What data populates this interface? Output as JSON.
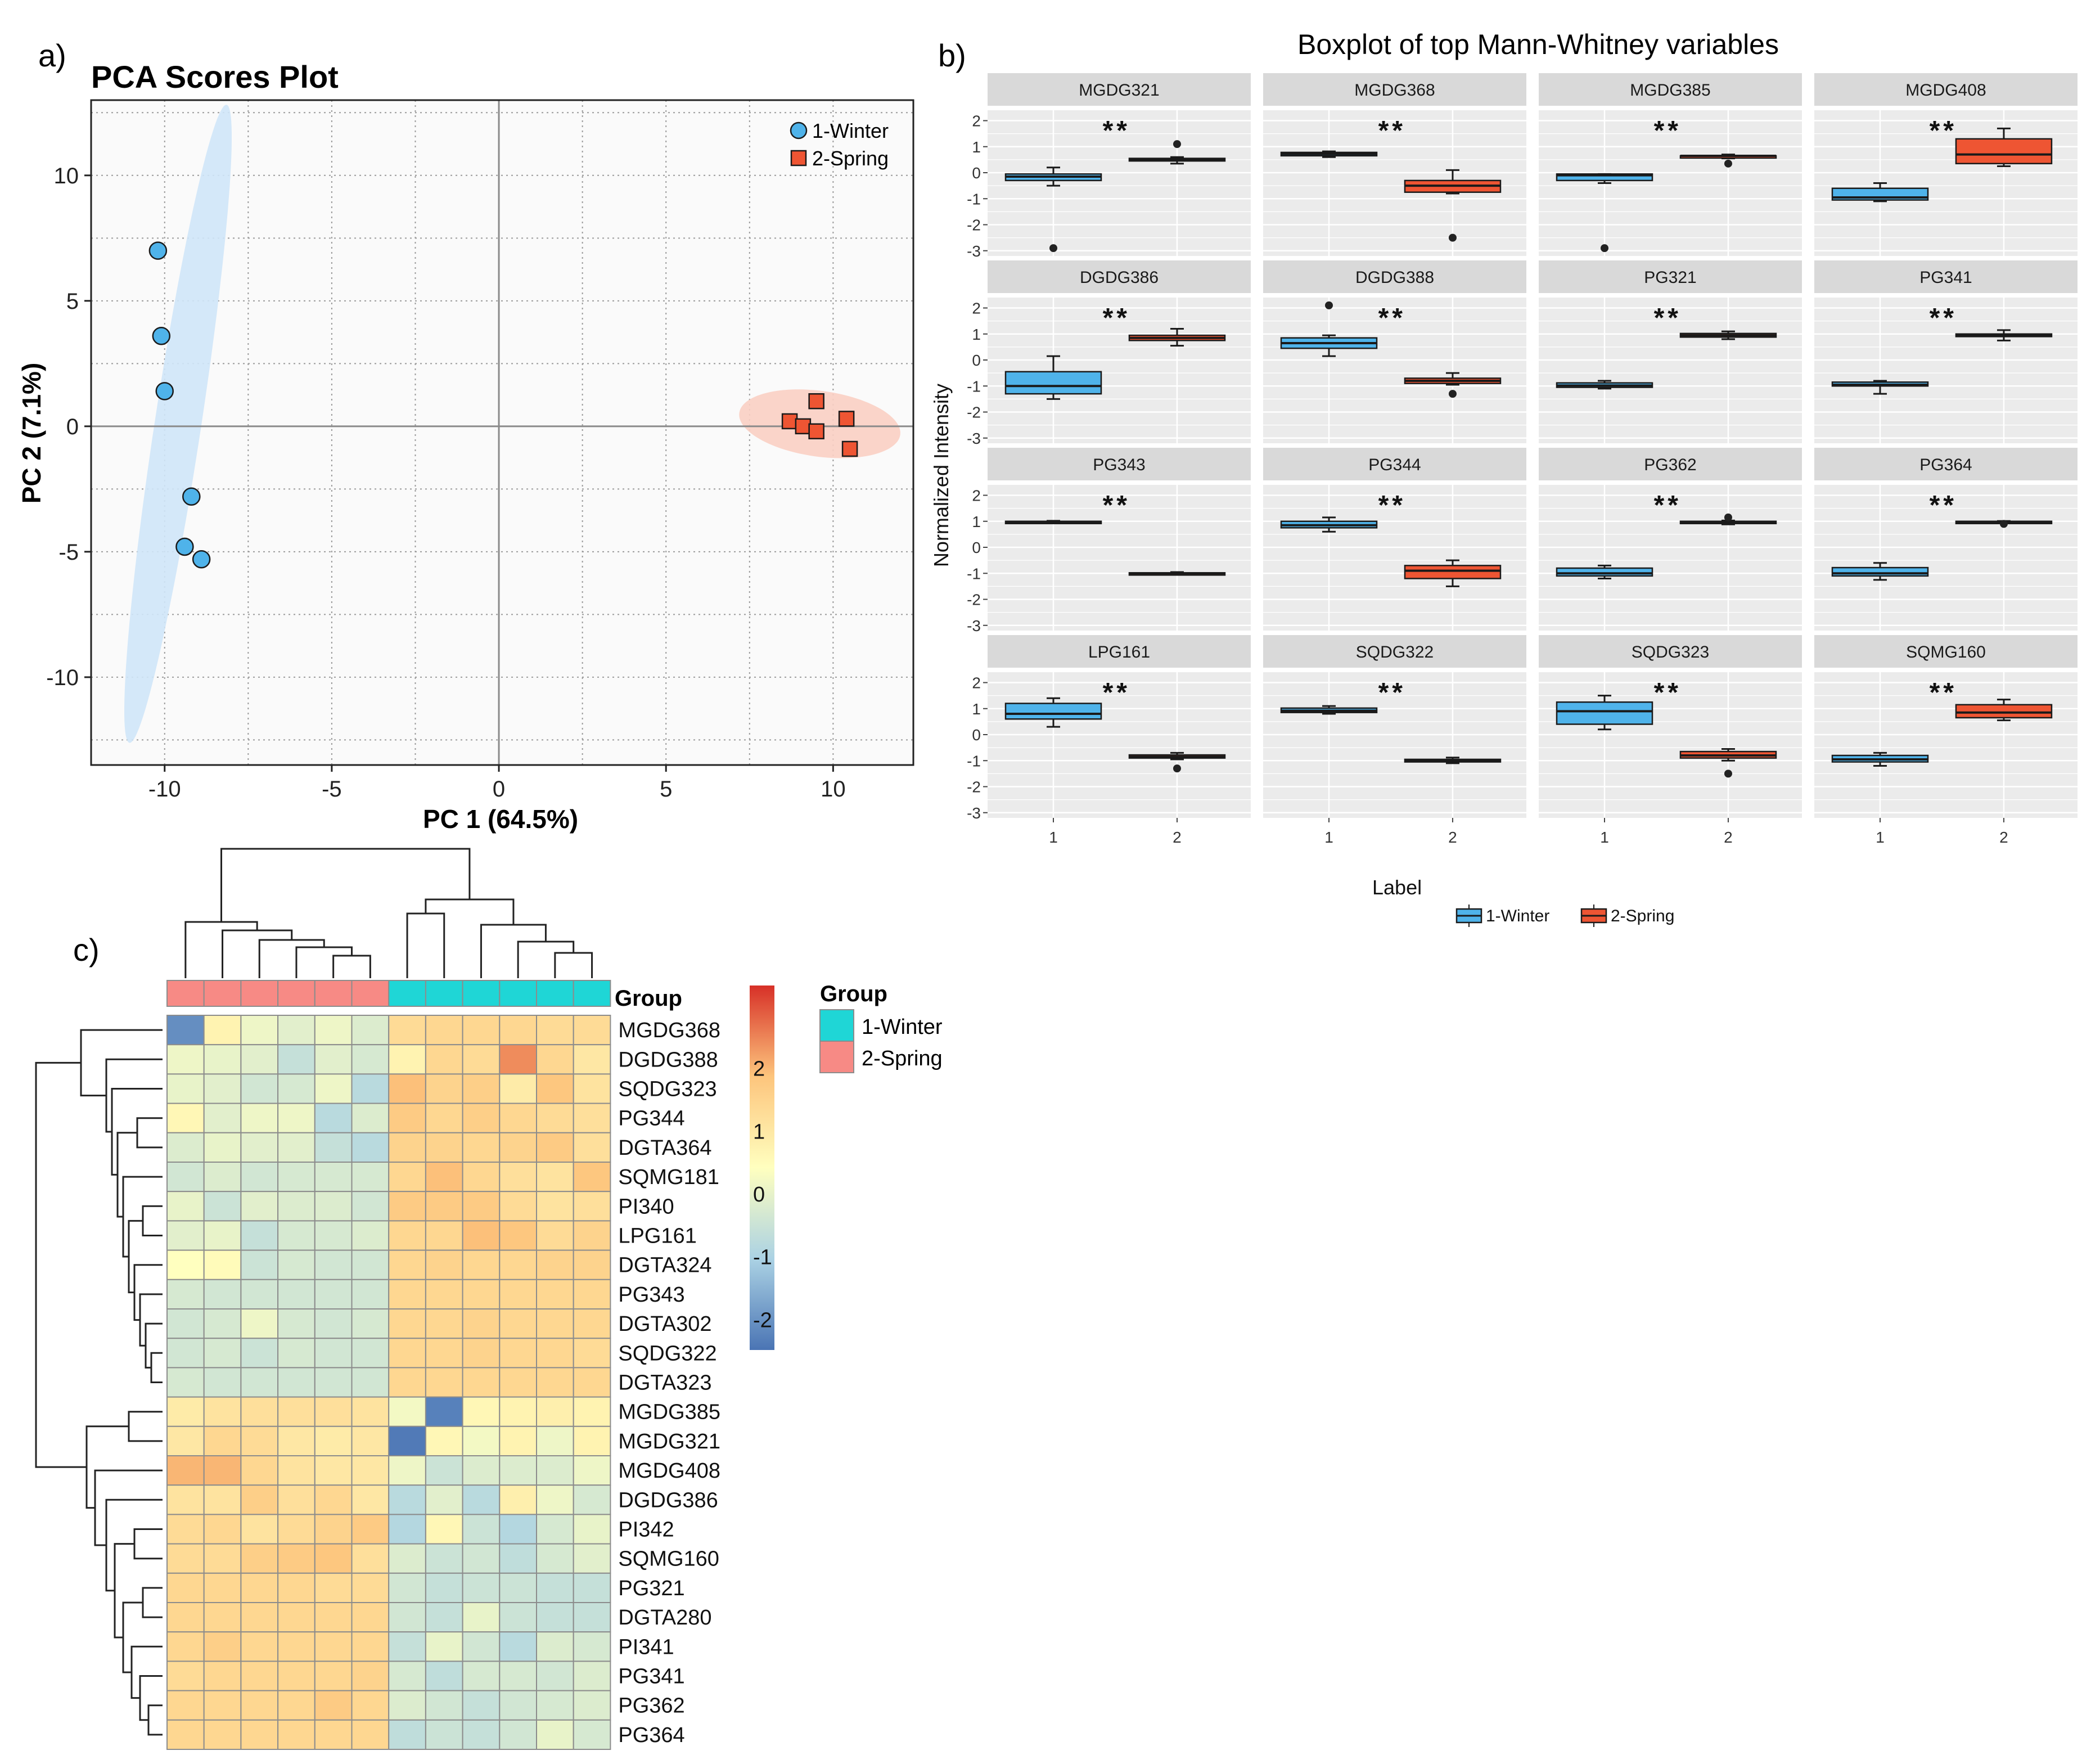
{
  "panels": {
    "a": "a)",
    "b": "b)",
    "c": "c)"
  },
  "colors": {
    "winter": "#4FB3EA",
    "spring": "#EE5533",
    "winter_ellipse": "#CFE6F8",
    "spring_ellipse": "#F9CFC3",
    "strip_bg": "#D9D9D9",
    "panel_bg": "#EBEBEB",
    "group_winter": "#1FD6D6",
    "group_spring": "#F78A85",
    "heat_low": "#4A74B4",
    "heat_mid": "#FFFFBF",
    "heat_high": "#D73027"
  },
  "chart_data": [
    {
      "id": "pca",
      "type": "scatter",
      "title": "PCA Scores Plot",
      "xlabel": "PC 1 (64.5%)",
      "ylabel": "PC 2 (7.1%)",
      "xlim": [
        -12.2,
        12.4
      ],
      "ylim": [
        -13.5,
        13.0
      ],
      "xticks": [
        -10,
        -5,
        0,
        5,
        10
      ],
      "yticks": [
        -10,
        -5,
        0,
        5,
        10
      ],
      "xtick_labels": [
        "-10",
        "-5",
        "0",
        "5",
        "10"
      ],
      "ytick_labels": [
        "-10",
        "-5",
        "0",
        "5",
        "10"
      ],
      "legend": [
        "1-Winter",
        "2-Spring"
      ],
      "series": [
        {
          "name": "1-Winter",
          "marker": "circle",
          "points": [
            [
              -10.2,
              7.0
            ],
            [
              -10.1,
              3.6
            ],
            [
              -10.0,
              1.4
            ],
            [
              -9.2,
              -2.8
            ],
            [
              -9.4,
              -4.8
            ],
            [
              -8.9,
              -5.3
            ]
          ]
        },
        {
          "name": "2-Spring",
          "marker": "square",
          "points": [
            [
              9.5,
              1.0
            ],
            [
              8.7,
              0.2
            ],
            [
              9.1,
              0.0
            ],
            [
              9.5,
              -0.2
            ],
            [
              10.4,
              0.3
            ],
            [
              10.5,
              -0.9
            ]
          ]
        }
      ],
      "ellipses": [
        {
          "group": "1-Winter",
          "center": [
            -9.6,
            0.1
          ],
          "semi_major": 12.8,
          "semi_minor": 0.7,
          "angle_deg": 83.5
        },
        {
          "group": "2-Spring",
          "center": [
            9.6,
            0.1
          ],
          "semi_major": 2.45,
          "semi_minor": 1.3,
          "angle_deg": -12
        }
      ]
    },
    {
      "id": "boxplots",
      "type": "boxplot",
      "title": "Boxplot of top Mann-Whitney variables",
      "ylabel": "Normalized Intensity",
      "ylim": [
        -3.2,
        2.4
      ],
      "yticks": [
        2,
        1,
        0,
        -1,
        -2,
        -3
      ],
      "ytick_labels": [
        "2",
        "1",
        "0",
        "-1",
        "-2",
        "-3"
      ],
      "xtick_labels": [
        "1",
        "2"
      ],
      "significance": "**",
      "legend_title": "Label",
      "legend": [
        "1-Winter",
        "2-Spring"
      ],
      "facets": [
        {
          "name": "MGDG321",
          "g1": [
            -0.3,
            -0.15,
            -0.05,
            0.2,
            -0.5
          ],
          "g1_out": [
            -2.9
          ],
          "g2": [
            0.45,
            0.5,
            0.55,
            0.6,
            0.35
          ],
          "g2_out": [
            1.1
          ]
        },
        {
          "name": "MGDG368",
          "g1": [
            0.65,
            0.72,
            0.78,
            0.82,
            0.6
          ],
          "g1_out": [],
          "g2": [
            -0.75,
            -0.5,
            -0.3,
            0.1,
            -0.8
          ],
          "g2_out": [
            -2.5
          ]
        },
        {
          "name": "MGDG385",
          "g1": [
            -0.3,
            -0.1,
            -0.05,
            -0.05,
            -0.4
          ],
          "g1_out": [
            -2.9
          ],
          "g2": [
            0.6,
            0.65,
            0.65,
            0.7,
            0.55
          ],
          "g2_out": [
            0.35
          ]
        },
        {
          "name": "MGDG408",
          "g1": [
            -1.05,
            -0.95,
            -0.6,
            -0.4,
            -1.1
          ],
          "g1_out": [],
          "g2": [
            0.35,
            0.7,
            1.3,
            1.7,
            0.25
          ],
          "g2_out": []
        },
        {
          "name": "DGDG386",
          "g1": [
            -1.3,
            -1.0,
            -0.45,
            0.15,
            -1.5
          ],
          "g1_out": [],
          "g2": [
            0.75,
            0.85,
            0.95,
            1.2,
            0.55
          ],
          "g2_out": []
        },
        {
          "name": "DGDG388",
          "g1": [
            0.45,
            0.65,
            0.85,
            0.95,
            0.15
          ],
          "g1_out": [
            2.1
          ],
          "g2": [
            -0.9,
            -0.8,
            -0.7,
            -0.5,
            -0.95
          ],
          "g2_out": [
            -1.3
          ]
        },
        {
          "name": "PG321",
          "g1": [
            -1.05,
            -0.98,
            -0.88,
            -0.8,
            -1.1
          ],
          "g1_out": [],
          "g2": [
            0.88,
            0.95,
            1.02,
            1.1,
            0.8
          ],
          "g2_out": []
        },
        {
          "name": "PG341",
          "g1": [
            -1.0,
            -0.95,
            -0.85,
            -0.8,
            -1.3
          ],
          "g1_out": [],
          "g2": [
            0.9,
            0.95,
            1.0,
            1.15,
            0.75
          ],
          "g2_out": []
        },
        {
          "name": "PG343",
          "g1": [
            0.95,
            0.98,
            1.0,
            1.02,
            0.93
          ],
          "g1_out": [],
          "g2": [
            -1.03,
            -1.0,
            -0.98,
            -0.95,
            -1.06
          ],
          "g2_out": []
        },
        {
          "name": "PG344",
          "g1": [
            0.75,
            0.85,
            1.0,
            1.15,
            0.6
          ],
          "g1_out": [],
          "g2": [
            -1.2,
            -0.9,
            -0.7,
            -0.5,
            -1.5
          ],
          "g2_out": []
        },
        {
          "name": "PG362",
          "g1": [
            -1.1,
            -1.0,
            -0.8,
            -0.7,
            -1.2
          ],
          "g1_out": [],
          "g2": [
            0.92,
            0.95,
            1.0,
            1.03,
            0.88
          ],
          "g2_out": [
            1.15
          ]
        },
        {
          "name": "PG364",
          "g1": [
            -1.1,
            -1.0,
            -0.78,
            -0.6,
            -1.25
          ],
          "g1_out": [],
          "g2": [
            0.97,
            0.98,
            1.0,
            1.01,
            0.96
          ],
          "g2_out": [
            0.9
          ]
        },
        {
          "name": "LPG161",
          "g1": [
            0.6,
            0.8,
            1.2,
            1.4,
            0.3
          ],
          "g1_out": [],
          "g2": [
            -0.9,
            -0.85,
            -0.78,
            -0.7,
            -0.95
          ],
          "g2_out": [
            -1.3
          ]
        },
        {
          "name": "SQDG322",
          "g1": [
            0.85,
            0.92,
            1.02,
            1.1,
            0.8
          ],
          "g1_out": [],
          "g2": [
            -1.05,
            -1.0,
            -0.95,
            -0.88,
            -1.1
          ],
          "g2_out": []
        },
        {
          "name": "SQDG323",
          "g1": [
            0.4,
            0.9,
            1.25,
            1.5,
            0.2
          ],
          "g1_out": [],
          "g2": [
            -0.9,
            -0.8,
            -0.65,
            -0.55,
            -1.0
          ],
          "g2_out": [
            -1.5
          ]
        },
        {
          "name": "SQMG160",
          "g1": [
            -1.05,
            -0.95,
            -0.8,
            -0.7,
            -1.2
          ],
          "g1_out": [],
          "g2": [
            0.65,
            0.85,
            1.15,
            1.35,
            0.55
          ],
          "g2_out": []
        }
      ]
    },
    {
      "id": "heatmap",
      "type": "heatmap",
      "group_title": "Group",
      "legend": [
        "1-Winter",
        "2-Spring"
      ],
      "scale_ticks": [
        2,
        1,
        0,
        -1,
        -2
      ],
      "scale_tick_labels": [
        "2",
        "1",
        "0",
        "-1",
        "-2"
      ],
      "scale_range": [
        -2.9,
        2.9
      ],
      "column_groups": [
        "2-Spring",
        "2-Spring",
        "2-Spring",
        "2-Spring",
        "2-Spring",
        "2-Spring",
        "1-Winter",
        "1-Winter",
        "1-Winter",
        "1-Winter",
        "1-Winter",
        "1-Winter"
      ],
      "rows": [
        {
          "name": "MGDG368",
          "values": [
            -2.5,
            0.3,
            -0.3,
            -0.5,
            -0.3,
            -0.6,
            0.9,
            1.0,
            1.0,
            1.0,
            0.9,
            0.9
          ]
        },
        {
          "name": "DGDG388",
          "values": [
            -0.3,
            -0.4,
            -0.5,
            -1.0,
            -0.5,
            -0.7,
            0.3,
            1.0,
            0.9,
            2.0,
            1.0,
            0.6
          ]
        },
        {
          "name": "SQDG323",
          "values": [
            -0.4,
            -0.5,
            -0.8,
            -0.7,
            -0.3,
            -1.2,
            1.5,
            1.1,
            1.2,
            0.5,
            1.4,
            0.7
          ]
        },
        {
          "name": "PG344",
          "values": [
            0.2,
            -0.5,
            -0.3,
            -0.3,
            -1.2,
            -0.6,
            1.3,
            1.0,
            1.2,
            1.0,
            0.9,
            0.8
          ]
        },
        {
          "name": "DGTA364",
          "values": [
            -0.6,
            -0.4,
            -0.5,
            -0.5,
            -1.0,
            -1.2,
            1.1,
            1.1,
            1.0,
            1.1,
            1.3,
            0.8
          ]
        },
        {
          "name": "SQMG181",
          "values": [
            -0.8,
            -0.6,
            -0.8,
            -0.7,
            -0.7,
            -0.7,
            1.0,
            1.5,
            1.0,
            0.8,
            0.7,
            1.4
          ]
        },
        {
          "name": "PI340",
          "values": [
            -0.4,
            -0.9,
            -0.5,
            -0.6,
            -0.6,
            -0.8,
            1.3,
            1.3,
            1.3,
            0.9,
            0.7,
            0.8
          ]
        },
        {
          "name": "LPG161",
          "values": [
            -0.5,
            -0.4,
            -1.0,
            -0.7,
            -0.7,
            -0.6,
            1.0,
            1.0,
            1.5,
            1.4,
            0.9,
            1.1
          ]
        },
        {
          "name": "DGTA324",
          "values": [
            0.0,
            0.1,
            -0.9,
            -0.7,
            -0.8,
            -0.8,
            1.0,
            1.1,
            1.0,
            1.0,
            1.1,
            1.1
          ]
        },
        {
          "name": "PG343",
          "values": [
            -0.7,
            -0.8,
            -0.8,
            -0.8,
            -0.8,
            -0.8,
            1.0,
            1.0,
            1.0,
            1.0,
            1.0,
            1.0
          ]
        },
        {
          "name": "DGTA302",
          "values": [
            -0.8,
            -0.7,
            -0.3,
            -0.7,
            -0.8,
            -0.7,
            1.0,
            1.0,
            1.1,
            1.0,
            1.0,
            1.0
          ]
        },
        {
          "name": "SQDG322",
          "values": [
            -0.8,
            -0.7,
            -0.9,
            -0.7,
            -0.8,
            -0.8,
            1.0,
            1.0,
            1.1,
            1.0,
            1.0,
            0.9
          ]
        },
        {
          "name": "DGTA323",
          "values": [
            -0.7,
            -0.8,
            -0.8,
            -0.8,
            -0.8,
            -0.8,
            1.0,
            1.0,
            1.0,
            1.0,
            1.0,
            1.0
          ]
        },
        {
          "name": "MGDG385",
          "values": [
            0.5,
            0.7,
            0.8,
            0.8,
            0.8,
            0.7,
            -0.2,
            -2.7,
            0.2,
            0.3,
            0.4,
            0.3
          ]
        },
        {
          "name": "MGDG321",
          "values": [
            0.6,
            1.0,
            0.9,
            0.6,
            0.5,
            0.6,
            -2.8,
            0.2,
            -0.2,
            0.3,
            -0.3,
            0.3
          ]
        },
        {
          "name": "MGDG408",
          "values": [
            1.6,
            1.6,
            1.0,
            0.7,
            0.6,
            0.6,
            -0.3,
            -0.9,
            -0.6,
            -0.6,
            -0.6,
            -0.3
          ]
        },
        {
          "name": "DGDG386",
          "values": [
            0.7,
            0.7,
            1.2,
            0.8,
            1.0,
            0.6,
            -1.2,
            -0.5,
            -1.2,
            0.4,
            -0.3,
            -0.7
          ]
        },
        {
          "name": "PI342",
          "values": [
            0.9,
            1.0,
            0.7,
            0.9,
            1.1,
            1.3,
            -1.3,
            0.2,
            -0.9,
            -1.3,
            -0.7,
            -0.4
          ]
        },
        {
          "name": "SQMG160",
          "values": [
            0.9,
            0.9,
            1.2,
            1.3,
            1.4,
            0.8,
            -0.6,
            -0.9,
            -0.8,
            -1.1,
            -0.7,
            -0.5
          ]
        },
        {
          "name": "PG321",
          "values": [
            1.0,
            1.0,
            1.0,
            1.0,
            0.9,
            0.9,
            -0.8,
            -1.0,
            -0.9,
            -0.9,
            -1.0,
            -1.0
          ]
        },
        {
          "name": "DGTA280",
          "values": [
            1.0,
            1.0,
            1.0,
            1.0,
            1.0,
            1.0,
            -0.8,
            -1.0,
            -0.4,
            -0.9,
            -1.0,
            -1.0
          ]
        },
        {
          "name": "PI341",
          "values": [
            1.0,
            1.2,
            1.0,
            1.0,
            1.0,
            1.0,
            -1.0,
            -0.4,
            -0.8,
            -1.2,
            -0.6,
            -0.7
          ]
        },
        {
          "name": "PG341",
          "values": [
            0.9,
            1.0,
            1.0,
            1.0,
            1.0,
            1.1,
            -0.7,
            -1.1,
            -0.7,
            -0.7,
            -0.8,
            -0.6
          ]
        },
        {
          "name": "PG362",
          "values": [
            1.0,
            1.0,
            1.0,
            1.0,
            1.3,
            1.0,
            -0.6,
            -0.8,
            -1.0,
            -0.8,
            -0.7,
            -0.6
          ]
        },
        {
          "name": "PG364",
          "values": [
            1.0,
            1.0,
            1.0,
            1.0,
            1.0,
            1.0,
            -1.1,
            -0.9,
            -1.0,
            -0.8,
            -0.4,
            -0.7
          ]
        }
      ]
    }
  ]
}
